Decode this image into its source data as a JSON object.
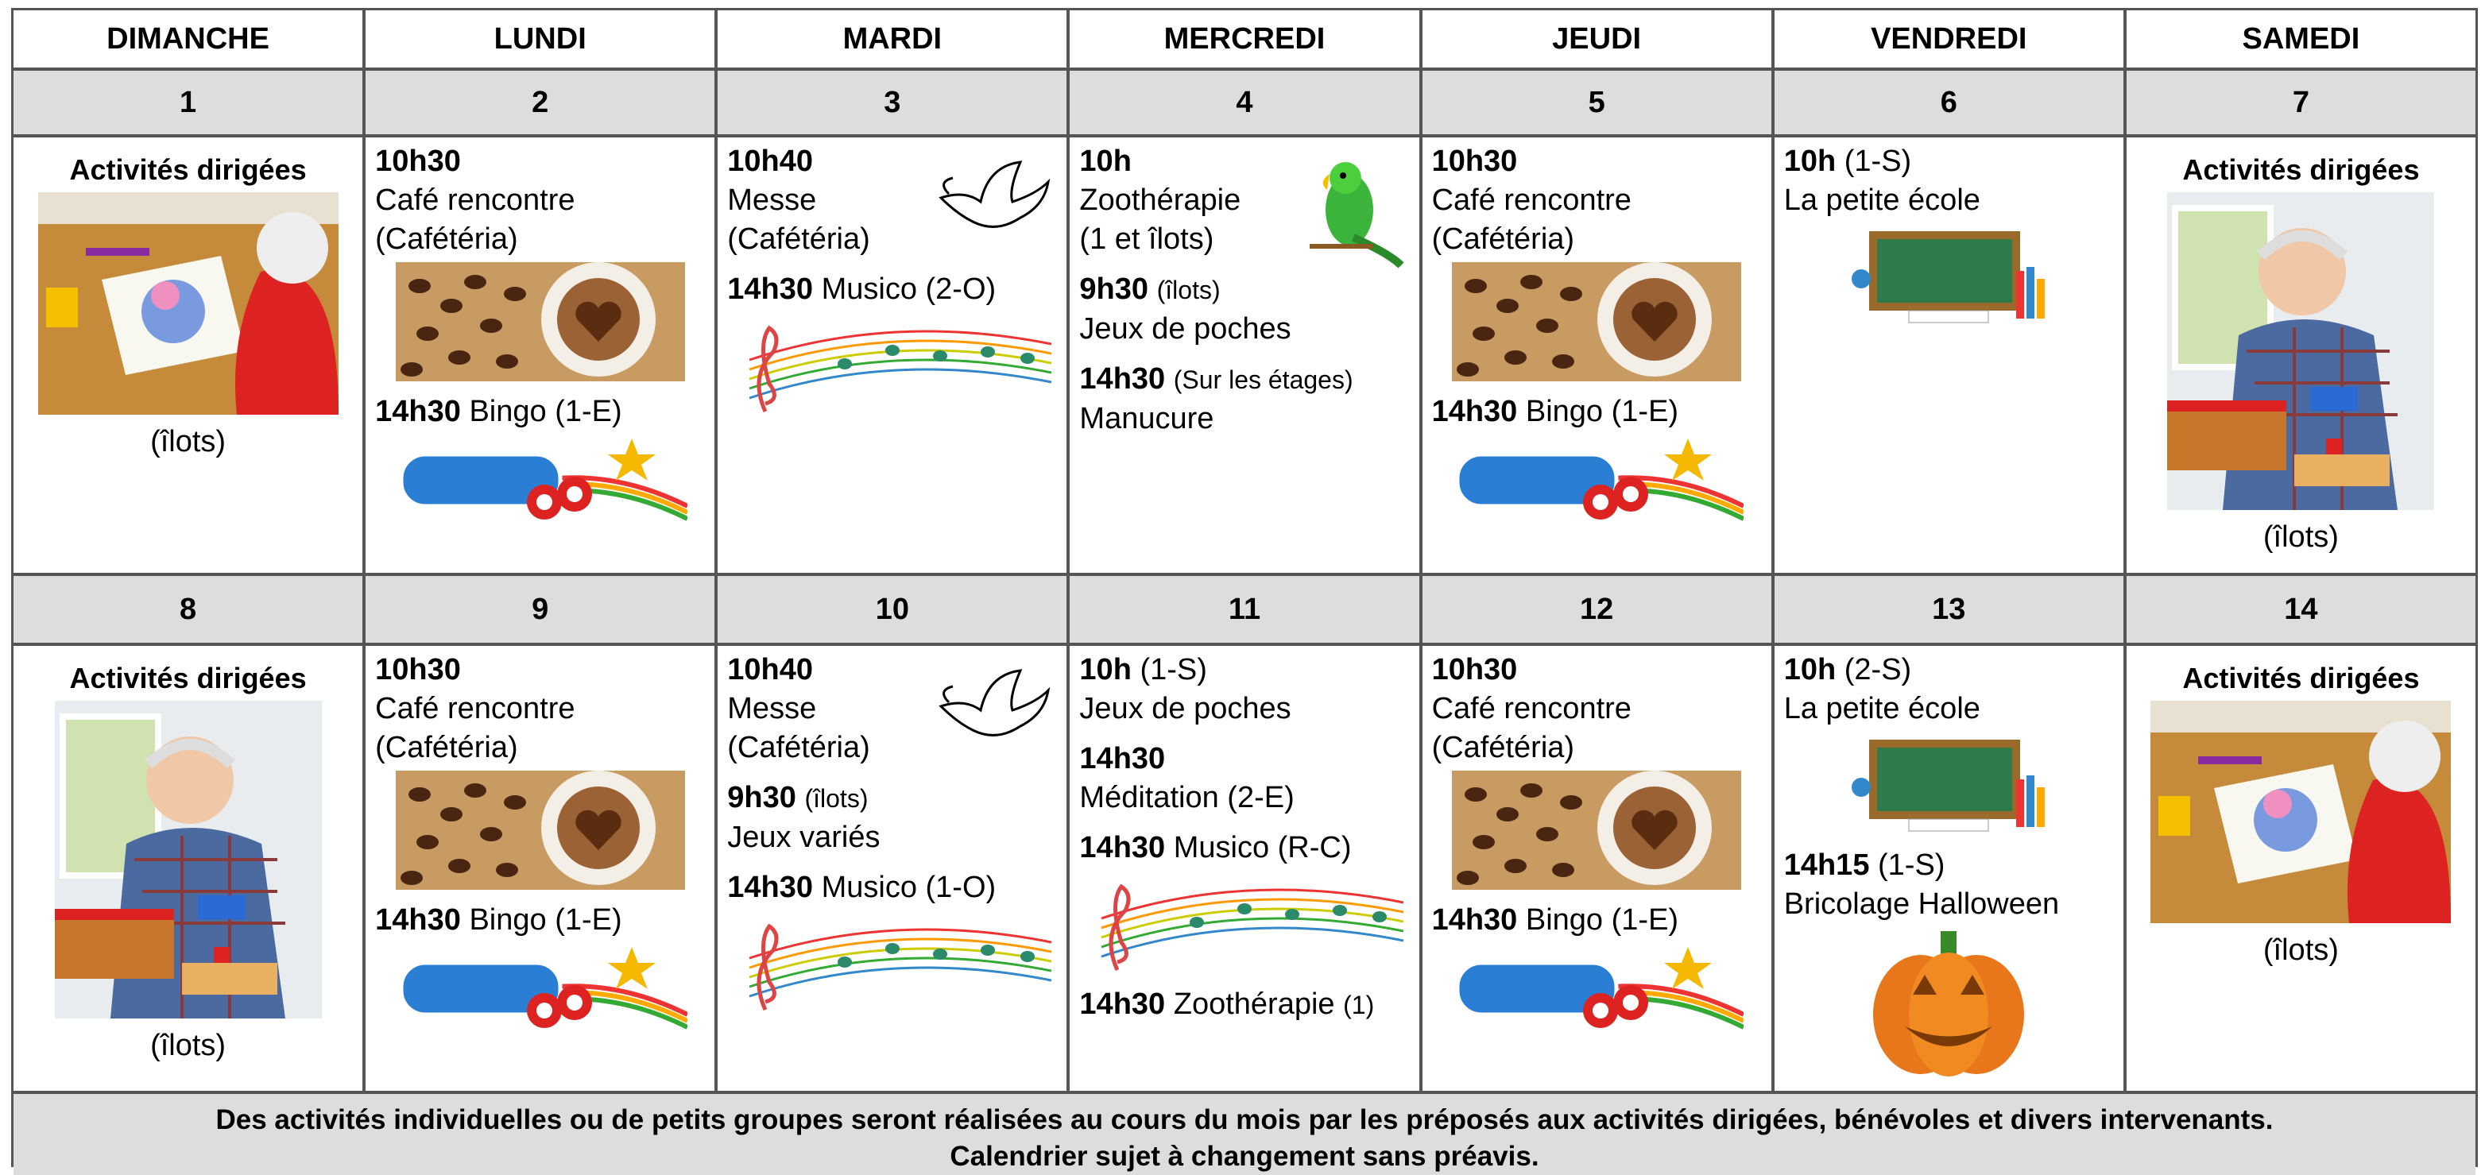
{
  "days": [
    "DIMANCHE",
    "LUNDI",
    "MARDI",
    "MERCREDI",
    "JEUDI",
    "VENDREDI",
    "SAMEDI"
  ],
  "weeks": [
    {
      "dates": [
        1,
        2,
        3,
        4,
        5,
        6,
        7
      ],
      "cells": [
        {
          "heading": "Activités dirigées",
          "caption": "(îlots)"
        },
        {
          "items": [
            {
              "time": "10h30",
              "lines": [
                "Café rencontre",
                "(Cafétéria)"
              ]
            },
            {
              "time": "14h30",
              "inline": "Bingo (1-E)"
            }
          ]
        },
        {
          "items": [
            {
              "time": "10h40",
              "lines": [
                "Messe",
                "(Cafétéria)"
              ]
            },
            {
              "time": "14h30",
              "inline": "Musico (2-O)"
            }
          ]
        },
        {
          "items": [
            {
              "time": "10h",
              "lines": [
                "Zoothérapie",
                "(1 et îlots)"
              ]
            },
            {
              "time": "9h30",
              "note": "(îlots)",
              "lines": [
                "Jeux de poches"
              ]
            },
            {
              "time": "14h30",
              "note": "(Sur les étages)",
              "lines": [
                "Manucure"
              ]
            }
          ]
        },
        {
          "items": [
            {
              "time": "10h30",
              "lines": [
                "Café rencontre",
                "(Cafétéria)"
              ]
            },
            {
              "time": "14h30",
              "inline": "Bingo (1-E)"
            }
          ]
        },
        {
          "items": [
            {
              "time": "10h",
              "inline": "(1-S)",
              "lines": [
                "La petite école"
              ]
            }
          ]
        },
        {
          "heading": "Activités dirigées",
          "caption": "(îlots)"
        }
      ]
    },
    {
      "dates": [
        8,
        9,
        10,
        11,
        12,
        13,
        14
      ],
      "cells": [
        {
          "heading": "Activités dirigées",
          "caption": "(îlots)"
        },
        {
          "items": [
            {
              "time": "10h30",
              "lines": [
                "Café rencontre",
                "(Cafétéria)"
              ]
            },
            {
              "time": "14h30",
              "inline": "Bingo (1-E)"
            }
          ]
        },
        {
          "items": [
            {
              "time": "10h40",
              "lines": [
                "Messe",
                "(Cafétéria)"
              ]
            },
            {
              "time": "9h30",
              "note": "(îlots)",
              "lines": [
                "Jeux variés"
              ]
            },
            {
              "time": "14h30",
              "inline": "Musico (1-O)"
            }
          ]
        },
        {
          "items": [
            {
              "time": "10h",
              "inline": "(1-S)",
              "lines": [
                "Jeux de poches"
              ]
            },
            {
              "time": "14h30",
              "lines": [
                "Méditation (2-E)"
              ]
            },
            {
              "time": "14h30",
              "inline": "Musico (R-C)"
            },
            {
              "time": "14h30",
              "inline": "Zoothérapie",
              "note": "(1)"
            }
          ]
        },
        {
          "items": [
            {
              "time": "10h30",
              "lines": [
                "Café rencontre",
                "(Cafétéria)"
              ]
            },
            {
              "time": "14h30",
              "inline": "Bingo (1-E)"
            }
          ]
        },
        {
          "items": [
            {
              "time": "10h",
              "inline": "(2-S)",
              "lines": [
                "La petite école"
              ]
            },
            {
              "time": "14h15",
              "inline": "(1-S)",
              "lines": [
                "Bricolage Halloween"
              ]
            }
          ]
        },
        {
          "heading": "Activités dirigées",
          "caption": "(îlots)"
        }
      ]
    }
  ],
  "footer": [
    "Des activités individuelles ou de petits groupes seront réalisées au cours du mois par les préposés aux activités dirigées, bénévoles et divers intervenants.",
    "Calendrier sujet à changement sans préavis."
  ]
}
